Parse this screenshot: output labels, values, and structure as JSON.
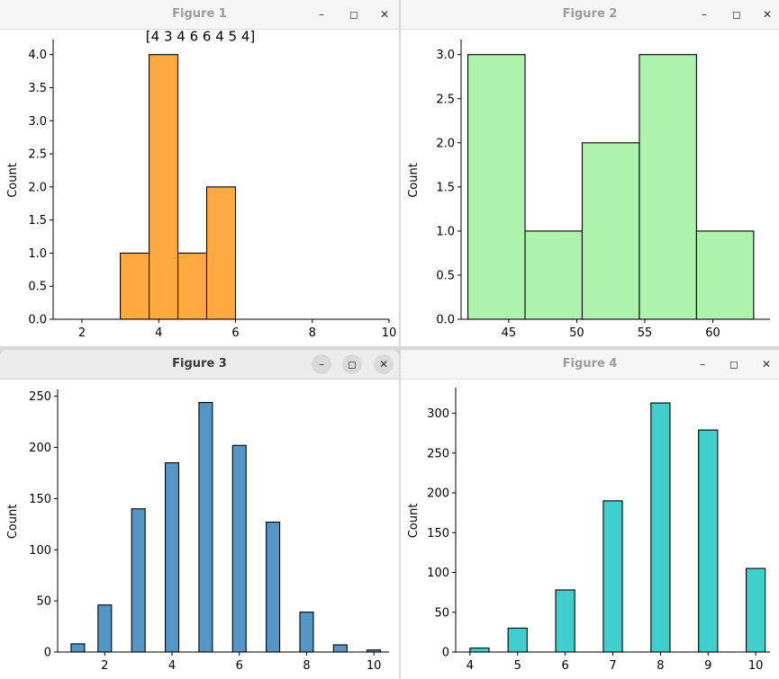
{
  "windows": [
    {
      "title": "Figure 1",
      "active": false
    },
    {
      "title": "Figure 2",
      "active": false
    },
    {
      "title": "Figure 3",
      "active": true
    },
    {
      "title": "Figure 4",
      "active": false
    }
  ],
  "window_controls": {
    "minimize": "–",
    "maximize": "◻",
    "close": "✕"
  },
  "chart_data": [
    {
      "type": "bar",
      "title": "[4 3 4 6 6 4 5 4]",
      "xlabel": "",
      "ylabel": "Count",
      "xlim": [
        1.25,
        10
      ],
      "ylim": [
        0,
        4.2
      ],
      "xticks": [
        2,
        4,
        6,
        8,
        10
      ],
      "yticks": [
        0.0,
        0.5,
        1.0,
        1.5,
        2.0,
        2.5,
        3.0,
        3.5,
        4.0
      ],
      "ytick_labels": [
        "0.0",
        "0.5",
        "1.0",
        "1.5",
        "2.0",
        "2.5",
        "3.0",
        "3.5",
        "4.0"
      ],
      "bins": [
        [
          3.0,
          3.75
        ],
        [
          3.75,
          4.5
        ],
        [
          4.5,
          5.25
        ],
        [
          5.25,
          6.0
        ]
      ],
      "values": [
        1,
        4,
        1,
        2
      ],
      "color": "#ffa940"
    },
    {
      "type": "bar",
      "title": "",
      "xlabel": "",
      "ylabel": "Count",
      "xlim": [
        41.5,
        64.2
      ],
      "ylim": [
        0,
        3.15
      ],
      "xticks": [
        45,
        50,
        55,
        60
      ],
      "yticks": [
        0.0,
        0.5,
        1.0,
        1.5,
        2.0,
        2.5,
        3.0
      ],
      "ytick_labels": [
        "0.0",
        "0.5",
        "1.0",
        "1.5",
        "2.0",
        "2.5",
        "3.0"
      ],
      "bins": [
        [
          42.0,
          46.2
        ],
        [
          46.2,
          50.4
        ],
        [
          50.4,
          54.6
        ],
        [
          54.6,
          58.8
        ],
        [
          58.8,
          63.0
        ]
      ],
      "values": [
        3,
        1,
        2,
        3,
        1
      ],
      "color": "#adf2ad"
    },
    {
      "type": "bar",
      "title": "",
      "xlabel": "",
      "ylabel": "Count",
      "xlim": [
        0.6,
        10.45
      ],
      "ylim": [
        0,
        255
      ],
      "xticks": [
        2,
        4,
        6,
        8,
        10
      ],
      "yticks": [
        0,
        50,
        100,
        150,
        200,
        250
      ],
      "ytick_labels": [
        "0",
        "50",
        "100",
        "150",
        "200",
        "250"
      ],
      "bins": [
        [
          1.0,
          1.4
        ],
        [
          1.8,
          2.2
        ],
        [
          2.8,
          3.2
        ],
        [
          3.8,
          4.2
        ],
        [
          4.8,
          5.2
        ],
        [
          5.8,
          6.2
        ],
        [
          6.8,
          7.2
        ],
        [
          7.8,
          8.2
        ],
        [
          8.8,
          9.2
        ],
        [
          9.8,
          10.2
        ]
      ],
      "values": [
        8,
        46,
        140,
        185,
        244,
        202,
        127,
        39,
        7,
        2
      ],
      "color": "#5596c8"
    },
    {
      "type": "bar",
      "title": "",
      "xlabel": "",
      "ylabel": "Count",
      "xlim": [
        3.7,
        10.3
      ],
      "ylim": [
        0,
        330
      ],
      "xticks": [
        4,
        5,
        6,
        7,
        8,
        9,
        10
      ],
      "yticks": [
        0,
        50,
        100,
        150,
        200,
        250,
        300
      ],
      "ytick_labels": [
        "0",
        "50",
        "100",
        "150",
        "200",
        "250",
        "300"
      ],
      "bins": [
        [
          4.0,
          4.4
        ],
        [
          4.8,
          5.2
        ],
        [
          5.8,
          6.2
        ],
        [
          6.8,
          7.2
        ],
        [
          7.8,
          8.2
        ],
        [
          8.8,
          9.2
        ],
        [
          9.8,
          10.2
        ]
      ],
      "values": [
        5,
        30,
        78,
        190,
        313,
        279,
        105
      ],
      "color": "#40cfcf"
    }
  ]
}
